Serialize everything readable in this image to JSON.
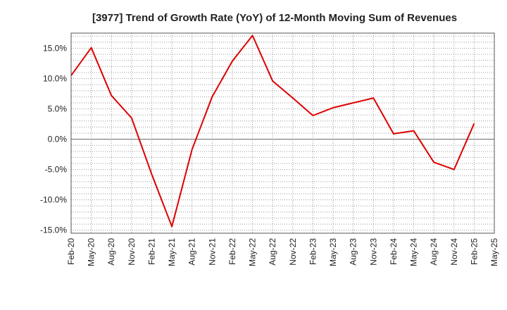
{
  "chart_data": {
    "type": "line",
    "title": "[3977]  Trend of Growth Rate (YoY) of 12-Month Moving Sum of Revenues",
    "xlabel": "",
    "ylabel": "",
    "x_ticks": [
      "Feb-20",
      "May-20",
      "Aug-20",
      "Nov-20",
      "Feb-21",
      "May-21",
      "Aug-21",
      "Nov-21",
      "Feb-22",
      "May-22",
      "Aug-22",
      "Nov-22",
      "Feb-23",
      "May-23",
      "Aug-23",
      "Nov-23",
      "Feb-24",
      "May-24",
      "Aug-24",
      "Nov-24",
      "Feb-25",
      "May-25"
    ],
    "y_ticks": [
      "15.0%",
      "10.0%",
      "5.0%",
      "0.0%",
      "-5.0%",
      "-10.0%",
      "-15.0%"
    ],
    "y_tick_values": [
      15,
      10,
      5,
      0,
      -5,
      -10,
      -15
    ],
    "ylim": [
      -15.5,
      17.5
    ],
    "grid": true,
    "line_color": "#dd0000",
    "series": [
      {
        "x": [
          "Feb-20",
          "May-20",
          "Aug-20",
          "Nov-20",
          "Feb-21",
          "May-21",
          "Aug-21",
          "Nov-21",
          "Feb-22",
          "May-22",
          "Aug-22",
          "Nov-22",
          "Feb-23",
          "May-23",
          "Aug-23",
          "Nov-23",
          "Feb-24",
          "May-24",
          "Aug-24",
          "Nov-24",
          "Feb-25"
        ],
        "values": [
          10.5,
          15.1,
          7.2,
          3.5,
          -5.8,
          -14.4,
          -1.7,
          7.0,
          12.9,
          17.1,
          9.6,
          6.8,
          3.9,
          5.2,
          6.0,
          6.8,
          0.9,
          1.4,
          -3.8,
          -5.0,
          2.6
        ]
      }
    ]
  }
}
